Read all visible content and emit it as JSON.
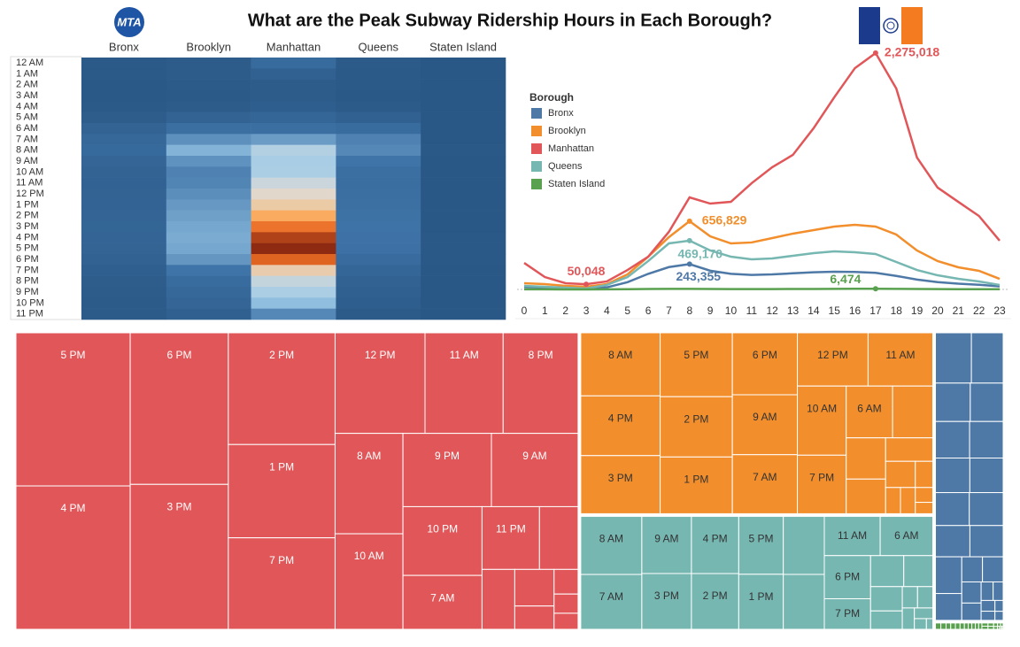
{
  "title": "What are the Peak Subway Ridership Hours in Each Borough?",
  "logo_text": "MTA",
  "chart_data": [
    {
      "type": "heatmap",
      "columns": [
        "Bronx",
        "Brooklyn",
        "Manhattan",
        "Queens",
        "Staten Island"
      ],
      "rows": [
        "12 AM",
        "1 AM",
        "2 AM",
        "3 AM",
        "4 AM",
        "5 AM",
        "6 AM",
        "7 AM",
        "8 AM",
        "9 AM",
        "10 AM",
        "11 AM",
        "12 PM",
        "1 PM",
        "2 PM",
        "3 PM",
        "4 PM",
        "5 PM",
        "6 PM",
        "7 PM",
        "8 PM",
        "9 PM",
        "10 PM",
        "11 PM"
      ],
      "colors": [
        "#2a5886",
        "#3f74a8",
        "#9ccae8",
        "#dedbd5",
        "#fdb165",
        "#e86a24",
        "#8e2a12"
      ]
    },
    {
      "type": "line",
      "legend_title": "Borough",
      "x": [
        0,
        1,
        2,
        3,
        4,
        5,
        6,
        7,
        8,
        9,
        10,
        11,
        12,
        13,
        14,
        15,
        16,
        17,
        18,
        19,
        20,
        21,
        22,
        23
      ],
      "xticks": [
        0,
        1,
        2,
        3,
        4,
        5,
        6,
        7,
        8,
        9,
        10,
        11,
        12,
        13,
        14,
        15,
        16,
        17,
        18,
        19,
        20,
        21,
        22,
        23
      ],
      "ylim": [
        0,
        2300000
      ],
      "series": [
        {
          "name": "Bronx",
          "color": "#4e79a7",
          "values": [
            25000,
            17000,
            12000,
            10000,
            20000,
            70000,
            150000,
            215000,
            243355,
            180000,
            150000,
            140000,
            145000,
            155000,
            165000,
            170000,
            168000,
            160000,
            130000,
            95000,
            70000,
            55000,
            45000,
            30000
          ],
          "value_labels": [
            null,
            null,
            null,
            null,
            null,
            null,
            null,
            null,
            "243,355",
            null,
            null,
            null,
            null,
            null,
            null,
            null,
            null,
            null,
            null,
            null,
            null,
            null,
            null,
            null
          ]
        },
        {
          "name": "Brooklyn",
          "color": "#f28e2b",
          "values": [
            60000,
            51000,
            34000,
            26000,
            51000,
            145000,
            315000,
            503000,
            656829,
            511000,
            443000,
            452000,
            494000,
            537000,
            571000,
            605000,
            622000,
            605000,
            528000,
            375000,
            273000,
            213000,
            179000,
            102000
          ],
          "value_labels": [
            null,
            null,
            null,
            null,
            null,
            null,
            null,
            null,
            "656,829",
            null,
            null,
            null,
            null,
            null,
            null,
            null,
            null,
            null,
            null,
            null,
            null,
            null,
            null,
            null
          ]
        },
        {
          "name": "Manhattan",
          "color": "#e15759",
          "values": [
            255000,
            119000,
            60000,
            50048,
            77000,
            187000,
            315000,
            554000,
            886000,
            826000,
            843000,
            1022000,
            1176000,
            1295000,
            1551000,
            1849000,
            2130000,
            2275018,
            1934000,
            1270000,
            980000,
            843000,
            707000,
            469000
          ],
          "value_labels": [
            null,
            null,
            null,
            "50,048",
            null,
            null,
            null,
            null,
            null,
            null,
            null,
            null,
            null,
            null,
            null,
            null,
            null,
            "2,275,018",
            null,
            null,
            null,
            null,
            null,
            null
          ]
        },
        {
          "name": "Queens",
          "color": "#76b7b2",
          "values": [
            34000,
            26000,
            17000,
            9000,
            43000,
            119000,
            273000,
            443000,
            469170,
            375000,
            315000,
            290000,
            298000,
            324000,
            349000,
            366000,
            358000,
            341000,
            264000,
            187000,
            136000,
            102000,
            77000,
            43000
          ],
          "value_labels": [
            null,
            null,
            null,
            null,
            null,
            null,
            null,
            null,
            "469,170",
            null,
            null,
            null,
            null,
            null,
            null,
            null,
            null,
            null,
            null,
            null,
            null,
            null,
            null,
            null
          ]
        },
        {
          "name": "Staten Island",
          "color": "#59a14f",
          "values": [
            1200,
            700,
            450,
            350,
            600,
            1800,
            3800,
            5200,
            5600,
            4300,
            3600,
            3500,
            3700,
            4000,
            4600,
            5500,
            6200,
            6474,
            5600,
            4200,
            3200,
            2600,
            2100,
            1600
          ],
          "value_labels": [
            null,
            null,
            null,
            null,
            null,
            null,
            null,
            null,
            null,
            null,
            null,
            null,
            null,
            null,
            null,
            null,
            null,
            "6,474",
            null,
            null,
            null,
            null,
            null,
            null
          ]
        }
      ]
    },
    {
      "type": "treemap"
    }
  ]
}
